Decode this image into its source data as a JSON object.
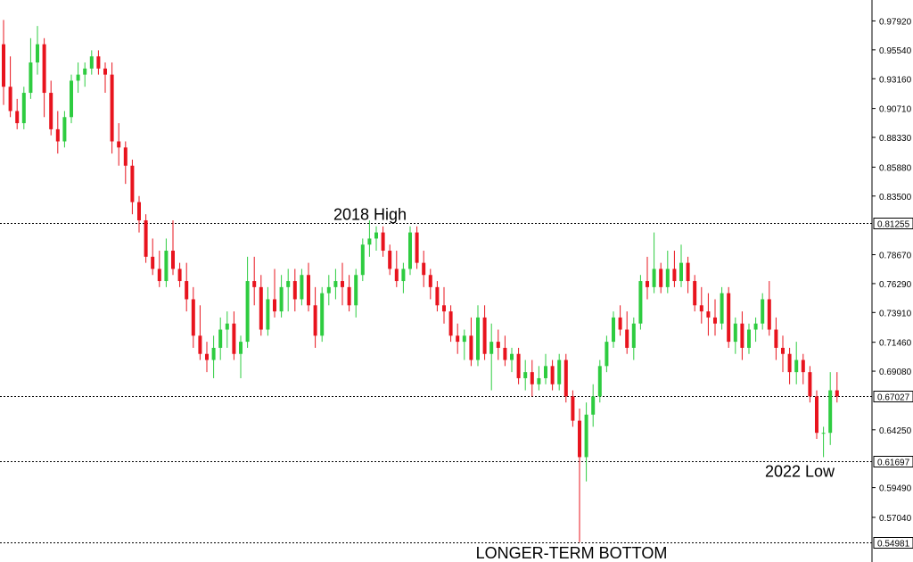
{
  "chart_data": {
    "type": "candlestick",
    "colors": {
      "up": "#2ecc40",
      "down": "#e8141e",
      "reference_line": "#000000"
    },
    "ylim": [
      0.5498,
      0.9935
    ],
    "y_ticks": [
      "0.97920",
      "0.95540",
      "0.93160",
      "0.90710",
      "0.88330",
      "0.85880",
      "0.83500",
      "0.78670",
      "0.76290",
      "0.73910",
      "0.71460",
      "0.69080",
      "0.64250",
      "0.59490",
      "0.57040"
    ],
    "reference_levels": [
      {
        "label": "0.81255",
        "value": 0.81255
      },
      {
        "label": "0.67027",
        "value": 0.67027
      },
      {
        "label": "0.61697",
        "value": 0.61697
      },
      {
        "label": "0.54981",
        "value": 0.54981
      }
    ],
    "annotations": {
      "high_2018": "2018 High",
      "low_2022": "2022 Low",
      "longer_term_bottom": "LONGER-TERM BOTTOM"
    },
    "annotation_values": {
      "high_2018": 0.81255,
      "low_2022": 0.61697,
      "longer_term_bottom": 0.54981
    },
    "candles": [
      [
        0.96,
        0.98,
        0.91,
        0.925
      ],
      [
        0.925,
        0.95,
        0.9,
        0.905
      ],
      [
        0.905,
        0.915,
        0.89,
        0.895
      ],
      [
        0.895,
        0.925,
        0.89,
        0.92
      ],
      [
        0.92,
        0.965,
        0.915,
        0.945
      ],
      [
        0.945,
        0.975,
        0.935,
        0.96
      ],
      [
        0.96,
        0.965,
        0.9,
        0.92
      ],
      [
        0.92,
        0.93,
        0.885,
        0.89
      ],
      [
        0.89,
        0.905,
        0.87,
        0.88
      ],
      [
        0.88,
        0.905,
        0.875,
        0.9
      ],
      [
        0.9,
        0.935,
        0.895,
        0.93
      ],
      [
        0.93,
        0.945,
        0.92,
        0.935
      ],
      [
        0.935,
        0.945,
        0.925,
        0.94
      ],
      [
        0.94,
        0.955,
        0.935,
        0.95
      ],
      [
        0.95,
        0.955,
        0.935,
        0.94
      ],
      [
        0.94,
        0.945,
        0.92,
        0.935
      ],
      [
        0.935,
        0.945,
        0.87,
        0.88
      ],
      [
        0.88,
        0.895,
        0.86,
        0.875
      ],
      [
        0.875,
        0.88,
        0.845,
        0.86
      ],
      [
        0.86,
        0.865,
        0.82,
        0.83
      ],
      [
        0.83,
        0.835,
        0.805,
        0.815
      ],
      [
        0.815,
        0.82,
        0.78,
        0.785
      ],
      [
        0.785,
        0.8,
        0.77,
        0.775
      ],
      [
        0.775,
        0.79,
        0.76,
        0.765
      ],
      [
        0.765,
        0.8,
        0.76,
        0.79
      ],
      [
        0.79,
        0.815,
        0.77,
        0.775
      ],
      [
        0.775,
        0.78,
        0.76,
        0.765
      ],
      [
        0.765,
        0.78,
        0.74,
        0.75
      ],
      [
        0.75,
        0.76,
        0.71,
        0.72
      ],
      [
        0.72,
        0.745,
        0.7,
        0.705
      ],
      [
        0.705,
        0.715,
        0.69,
        0.7
      ],
      [
        0.7,
        0.72,
        0.685,
        0.71
      ],
      [
        0.71,
        0.735,
        0.7,
        0.725
      ],
      [
        0.725,
        0.74,
        0.71,
        0.73
      ],
      [
        0.73,
        0.74,
        0.7,
        0.705
      ],
      [
        0.705,
        0.72,
        0.685,
        0.715
      ],
      [
        0.715,
        0.785,
        0.71,
        0.765
      ],
      [
        0.765,
        0.785,
        0.745,
        0.76
      ],
      [
        0.76,
        0.77,
        0.72,
        0.725
      ],
      [
        0.725,
        0.76,
        0.72,
        0.75
      ],
      [
        0.75,
        0.775,
        0.735,
        0.74
      ],
      [
        0.74,
        0.77,
        0.735,
        0.76
      ],
      [
        0.76,
        0.775,
        0.74,
        0.765
      ],
      [
        0.765,
        0.775,
        0.74,
        0.75
      ],
      [
        0.75,
        0.775,
        0.745,
        0.77
      ],
      [
        0.77,
        0.78,
        0.74,
        0.745
      ],
      [
        0.745,
        0.76,
        0.71,
        0.72
      ],
      [
        0.72,
        0.76,
        0.715,
        0.755
      ],
      [
        0.755,
        0.77,
        0.745,
        0.76
      ],
      [
        0.76,
        0.775,
        0.75,
        0.765
      ],
      [
        0.765,
        0.78,
        0.745,
        0.76
      ],
      [
        0.76,
        0.77,
        0.74,
        0.745
      ],
      [
        0.745,
        0.775,
        0.735,
        0.77
      ],
      [
        0.77,
        0.8,
        0.765,
        0.795
      ],
      [
        0.795,
        0.815,
        0.785,
        0.8
      ],
      [
        0.8,
        0.81,
        0.79,
        0.805
      ],
      [
        0.805,
        0.81,
        0.785,
        0.79
      ],
      [
        0.79,
        0.795,
        0.77,
        0.775
      ],
      [
        0.775,
        0.79,
        0.76,
        0.765
      ],
      [
        0.765,
        0.78,
        0.755,
        0.775
      ],
      [
        0.775,
        0.81,
        0.77,
        0.805
      ],
      [
        0.805,
        0.81,
        0.775,
        0.78
      ],
      [
        0.78,
        0.79,
        0.76,
        0.77
      ],
      [
        0.77,
        0.775,
        0.75,
        0.76
      ],
      [
        0.76,
        0.765,
        0.74,
        0.745
      ],
      [
        0.745,
        0.76,
        0.73,
        0.74
      ],
      [
        0.74,
        0.745,
        0.715,
        0.72
      ],
      [
        0.72,
        0.73,
        0.705,
        0.715
      ],
      [
        0.715,
        0.725,
        0.7,
        0.72
      ],
      [
        0.72,
        0.735,
        0.695,
        0.7
      ],
      [
        0.7,
        0.745,
        0.695,
        0.735
      ],
      [
        0.735,
        0.745,
        0.7,
        0.705
      ],
      [
        0.705,
        0.73,
        0.675,
        0.715
      ],
      [
        0.715,
        0.725,
        0.7,
        0.71
      ],
      [
        0.71,
        0.72,
        0.695,
        0.7
      ],
      [
        0.7,
        0.71,
        0.69,
        0.705
      ],
      [
        0.705,
        0.71,
        0.68,
        0.685
      ],
      [
        0.685,
        0.7,
        0.675,
        0.69
      ],
      [
        0.69,
        0.7,
        0.67,
        0.68
      ],
      [
        0.68,
        0.695,
        0.675,
        0.685
      ],
      [
        0.685,
        0.705,
        0.68,
        0.695
      ],
      [
        0.695,
        0.7,
        0.675,
        0.68
      ],
      [
        0.68,
        0.705,
        0.675,
        0.7
      ],
      [
        0.7,
        0.705,
        0.665,
        0.67
      ],
      [
        0.67,
        0.675,
        0.645,
        0.65
      ],
      [
        0.65,
        0.66,
        0.55,
        0.62
      ],
      [
        0.62,
        0.665,
        0.6,
        0.655
      ],
      [
        0.655,
        0.68,
        0.645,
        0.67
      ],
      [
        0.67,
        0.7,
        0.665,
        0.695
      ],
      [
        0.695,
        0.72,
        0.69,
        0.715
      ],
      [
        0.715,
        0.74,
        0.71,
        0.735
      ],
      [
        0.735,
        0.745,
        0.72,
        0.725
      ],
      [
        0.725,
        0.74,
        0.705,
        0.71
      ],
      [
        0.71,
        0.735,
        0.7,
        0.73
      ],
      [
        0.73,
        0.77,
        0.725,
        0.765
      ],
      [
        0.765,
        0.785,
        0.75,
        0.76
      ],
      [
        0.76,
        0.805,
        0.755,
        0.775
      ],
      [
        0.775,
        0.78,
        0.755,
        0.76
      ],
      [
        0.76,
        0.79,
        0.755,
        0.775
      ],
      [
        0.775,
        0.79,
        0.76,
        0.765
      ],
      [
        0.765,
        0.795,
        0.76,
        0.78
      ],
      [
        0.78,
        0.785,
        0.755,
        0.765
      ],
      [
        0.765,
        0.77,
        0.74,
        0.745
      ],
      [
        0.745,
        0.76,
        0.73,
        0.74
      ],
      [
        0.74,
        0.755,
        0.72,
        0.735
      ],
      [
        0.735,
        0.75,
        0.72,
        0.73
      ],
      [
        0.73,
        0.76,
        0.725,
        0.755
      ],
      [
        0.755,
        0.76,
        0.71,
        0.715
      ],
      [
        0.715,
        0.735,
        0.705,
        0.73
      ],
      [
        0.73,
        0.74,
        0.7,
        0.71
      ],
      [
        0.71,
        0.73,
        0.705,
        0.725
      ],
      [
        0.725,
        0.735,
        0.715,
        0.73
      ],
      [
        0.73,
        0.755,
        0.725,
        0.75
      ],
      [
        0.75,
        0.765,
        0.72,
        0.725
      ],
      [
        0.725,
        0.735,
        0.7,
        0.71
      ],
      [
        0.71,
        0.72,
        0.69,
        0.705
      ],
      [
        0.705,
        0.71,
        0.68,
        0.69
      ],
      [
        0.69,
        0.715,
        0.68,
        0.7
      ],
      [
        0.7,
        0.705,
        0.68,
        0.69
      ],
      [
        0.69,
        0.695,
        0.665,
        0.67
      ],
      [
        0.67,
        0.675,
        0.635,
        0.64
      ],
      [
        0.64,
        0.645,
        0.62,
        0.64
      ],
      [
        0.64,
        0.69,
        0.63,
        0.675
      ],
      [
        0.675,
        0.69,
        0.665,
        0.67
      ]
    ]
  }
}
